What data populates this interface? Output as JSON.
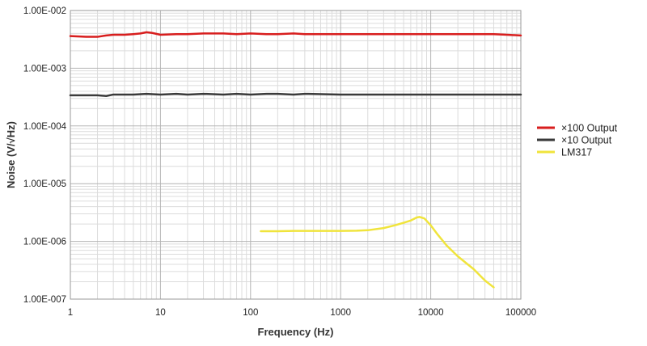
{
  "chart_data": {
    "type": "line",
    "title": "",
    "xlabel": "Frequency (Hz)",
    "ylabel": "Noise (V/√Hz)",
    "xscale": "log",
    "yscale": "log",
    "xlim": [
      1,
      100000
    ],
    "ylim": [
      1e-07,
      0.01
    ],
    "x_ticks": [
      1,
      10,
      100,
      1000,
      10000,
      100000
    ],
    "x_tick_labels": [
      "1",
      "10",
      "100",
      "1000",
      "10000",
      "100000"
    ],
    "y_ticks": [
      1e-07,
      1e-06,
      1e-05,
      0.0001,
      0.001,
      0.01
    ],
    "y_tick_labels": [
      "1.00E-007",
      "1.00E-006",
      "1.00E-005",
      "1.00E-004",
      "1.00E-003",
      "1.00E-002"
    ],
    "grid": true,
    "legend_position": "right",
    "series": [
      {
        "name": "×100 Output",
        "color": "#d81e1e",
        "points": [
          [
            1,
            0.0036
          ],
          [
            1.5,
            0.0035
          ],
          [
            2,
            0.0035
          ],
          [
            2.5,
            0.0037
          ],
          [
            3,
            0.0038
          ],
          [
            4,
            0.0038
          ],
          [
            5,
            0.0039
          ],
          [
            6,
            0.004
          ],
          [
            7,
            0.0042
          ],
          [
            8,
            0.0041
          ],
          [
            10,
            0.0038
          ],
          [
            15,
            0.0039
          ],
          [
            20,
            0.0039
          ],
          [
            30,
            0.004
          ],
          [
            50,
            0.004
          ],
          [
            70,
            0.0039
          ],
          [
            100,
            0.004
          ],
          [
            150,
            0.0039
          ],
          [
            200,
            0.0039
          ],
          [
            300,
            0.004
          ],
          [
            400,
            0.0039
          ],
          [
            1000,
            0.0039
          ],
          [
            3000,
            0.0039
          ],
          [
            10000,
            0.0039
          ],
          [
            30000,
            0.0039
          ],
          [
            50000,
            0.0039
          ],
          [
            70000,
            0.0038
          ],
          [
            100000,
            0.0037
          ]
        ]
      },
      {
        "name": "×10 Output",
        "color": "#3a3a3a",
        "points": [
          [
            1,
            0.00034
          ],
          [
            2,
            0.00034
          ],
          [
            2.5,
            0.00033
          ],
          [
            3,
            0.00035
          ],
          [
            4,
            0.00035
          ],
          [
            5,
            0.00035
          ],
          [
            7,
            0.00036
          ],
          [
            10,
            0.00035
          ],
          [
            15,
            0.00036
          ],
          [
            20,
            0.00035
          ],
          [
            30,
            0.00036
          ],
          [
            50,
            0.00035
          ],
          [
            70,
            0.00036
          ],
          [
            100,
            0.00035
          ],
          [
            150,
            0.00036
          ],
          [
            200,
            0.00036
          ],
          [
            300,
            0.00035
          ],
          [
            400,
            0.00036
          ],
          [
            1000,
            0.00035
          ],
          [
            3000,
            0.00035
          ],
          [
            10000,
            0.00035
          ],
          [
            30000,
            0.00035
          ],
          [
            70000,
            0.00035
          ],
          [
            100000,
            0.00035
          ]
        ]
      },
      {
        "name": "LM317",
        "color": "#f0e43c",
        "points": [
          [
            130,
            1.5e-06
          ],
          [
            200,
            1.5e-06
          ],
          [
            300,
            1.52e-06
          ],
          [
            500,
            1.52e-06
          ],
          [
            700,
            1.52e-06
          ],
          [
            1000,
            1.52e-06
          ],
          [
            1500,
            1.53e-06
          ],
          [
            2000,
            1.56e-06
          ],
          [
            3000,
            1.7e-06
          ],
          [
            4000,
            1.9e-06
          ],
          [
            5000,
            2.1e-06
          ],
          [
            6000,
            2.3e-06
          ],
          [
            7000,
            2.6e-06
          ],
          [
            7500,
            2.65e-06
          ],
          [
            8500,
            2.5e-06
          ],
          [
            10000,
            1.9e-06
          ],
          [
            12000,
            1.3e-06
          ],
          [
            15000,
            8.5e-07
          ],
          [
            20000,
            5.5e-07
          ],
          [
            30000,
            3.3e-07
          ],
          [
            40000,
            2.1e-07
          ],
          [
            50000,
            1.6e-07
          ]
        ]
      }
    ]
  }
}
